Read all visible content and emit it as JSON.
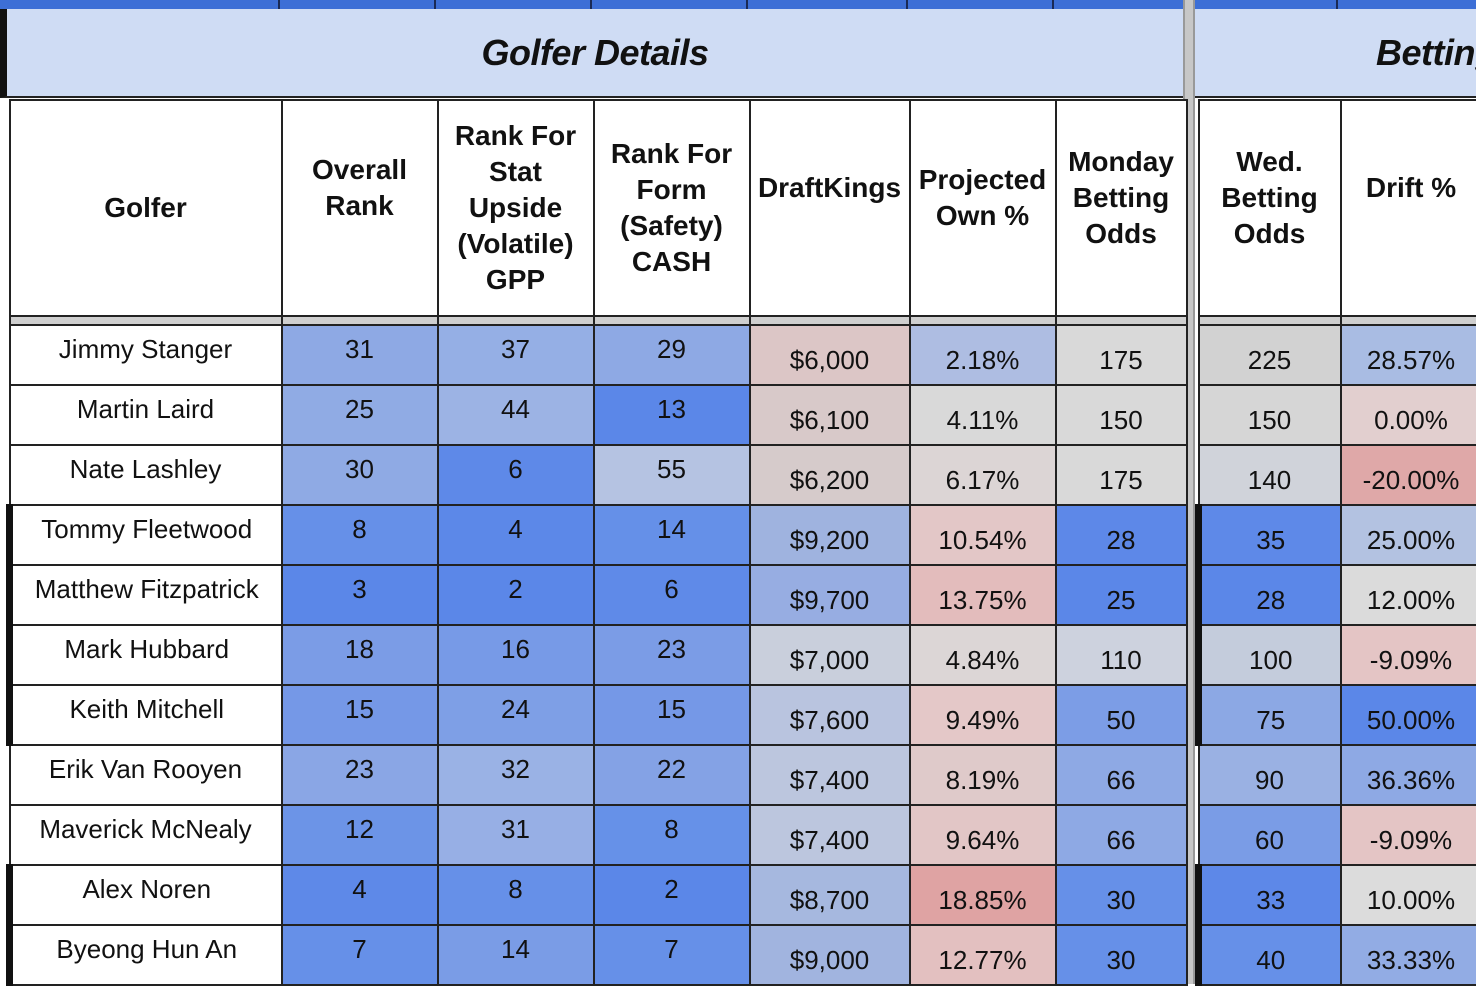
{
  "sections": {
    "golfer_details": "Golfer Details",
    "betting": "Betting"
  },
  "headers": {
    "golfer": "Golfer",
    "overall_rank": "Overall Rank",
    "rank_stat": "Rank For Stat Upside (Volatile) GPP",
    "rank_form": "Rank For Form (Safety) CASH",
    "draftkings": "DraftKings",
    "proj_own": "Projected Own %",
    "monday_odds": "Monday Betting Odds",
    "wed_odds": "Wed. Betting Odds",
    "drift": "Drift %"
  },
  "rows": [
    {
      "golfer": "Jimmy Stanger",
      "overall": "31",
      "stat": "37",
      "form": "29",
      "dk": "$6,000",
      "own": "2.18%",
      "mon": "175",
      "wed": "225",
      "drift": "28.57%"
    },
    {
      "golfer": "Martin Laird",
      "overall": "25",
      "stat": "44",
      "form": "13",
      "dk": "$6,100",
      "own": "4.11%",
      "mon": "150",
      "wed": "150",
      "drift": "0.00%"
    },
    {
      "golfer": "Nate Lashley",
      "overall": "30",
      "stat": "6",
      "form": "55",
      "dk": "$6,200",
      "own": "6.17%",
      "mon": "175",
      "wed": "140",
      "drift": "-20.00%"
    },
    {
      "golfer": "Tommy Fleetwood",
      "overall": "8",
      "stat": "4",
      "form": "14",
      "dk": "$9,200",
      "own": "10.54%",
      "mon": "28",
      "wed": "35",
      "drift": "25.00%"
    },
    {
      "golfer": "Matthew Fitzpatrick",
      "overall": "3",
      "stat": "2",
      "form": "6",
      "dk": "$9,700",
      "own": "13.75%",
      "mon": "25",
      "wed": "28",
      "drift": "12.00%"
    },
    {
      "golfer": "Mark Hubbard",
      "overall": "18",
      "stat": "16",
      "form": "23",
      "dk": "$7,000",
      "own": "4.84%",
      "mon": "110",
      "wed": "100",
      "drift": "-9.09%"
    },
    {
      "golfer": "Keith Mitchell",
      "overall": "15",
      "stat": "24",
      "form": "15",
      "dk": "$7,600",
      "own": "9.49%",
      "mon": "50",
      "wed": "75",
      "drift": "50.00%"
    },
    {
      "golfer": "Erik Van Rooyen",
      "overall": "23",
      "stat": "32",
      "form": "22",
      "dk": "$7,400",
      "own": "8.19%",
      "mon": "66",
      "wed": "90",
      "drift": "36.36%"
    },
    {
      "golfer": "Maverick McNealy",
      "overall": "12",
      "stat": "31",
      "form": "8",
      "dk": "$7,400",
      "own": "9.64%",
      "mon": "66",
      "wed": "60",
      "drift": "-9.09%"
    },
    {
      "golfer": "Alex Noren",
      "overall": "4",
      "stat": "8",
      "form": "2",
      "dk": "$8,700",
      "own": "18.85%",
      "mon": "30",
      "wed": "33",
      "drift": "10.00%"
    },
    {
      "golfer": "Byeong Hun An",
      "overall": "7",
      "stat": "14",
      "form": "7",
      "dk": "$9,000",
      "own": "12.77%",
      "mon": "30",
      "wed": "40",
      "drift": "33.33%"
    }
  ],
  "colors": {
    "band_bg": "#cfdcf4",
    "strip": "#3d6fd6",
    "strong_blue": "#5b87e8",
    "light_blue": "#a3b9e6",
    "pale_blue": "#b8c6e6",
    "grey": "#d6d6d6",
    "pink": "#e4c1c1",
    "red": "#dfa3a3"
  }
}
